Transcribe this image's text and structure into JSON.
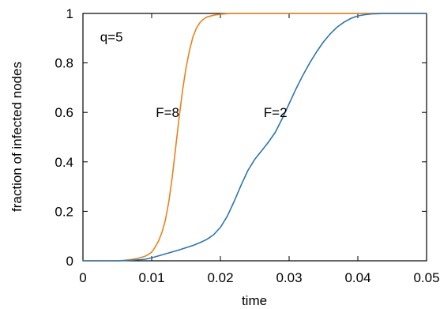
{
  "chart_data": {
    "type": "line",
    "xlabel": "time",
    "ylabel": "fraction of infected nodes",
    "xlim": [
      0,
      0.05
    ],
    "ylim": [
      0,
      1
    ],
    "grid": false,
    "legend": "none",
    "x_ticks": [
      "0",
      "0.01",
      "0.02",
      "0.03",
      "0.04",
      "0.05"
    ],
    "y_ticks": [
      "0",
      "0.2",
      "0.4",
      "0.6",
      "0.8",
      "1"
    ],
    "annotations": [
      {
        "text": "q=5",
        "x": 0.0025,
        "y": 0.905
      },
      {
        "text": "F=8",
        "x": 0.0106,
        "y": 0.6
      },
      {
        "text": "F=2",
        "x": 0.0263,
        "y": 0.6
      }
    ],
    "series": [
      {
        "color": "#e8831a",
        "x": [
          0,
          0.005,
          0.006,
          0.007,
          0.008,
          0.009,
          0.0095,
          0.01,
          0.0105,
          0.011,
          0.0115,
          0.012,
          0.0125,
          0.013,
          0.0135,
          0.014,
          0.0145,
          0.015,
          0.0155,
          0.016,
          0.0165,
          0.017,
          0.0175,
          0.018,
          0.019,
          0.02,
          0.021,
          0.022,
          0.023,
          0.025,
          0.05
        ],
        "y": [
          0,
          0,
          0.002,
          0.005,
          0.01,
          0.018,
          0.025,
          0.035,
          0.055,
          0.08,
          0.115,
          0.165,
          0.24,
          0.34,
          0.46,
          0.58,
          0.69,
          0.78,
          0.85,
          0.905,
          0.94,
          0.962,
          0.976,
          0.985,
          0.993,
          0.997,
          0.999,
          1.0,
          1.0,
          1.0,
          1.0
        ]
      },
      {
        "color": "#2a76b1",
        "x": [
          0,
          0.005,
          0.007,
          0.009,
          0.01,
          0.011,
          0.012,
          0.013,
          0.014,
          0.015,
          0.016,
          0.017,
          0.018,
          0.019,
          0.02,
          0.021,
          0.022,
          0.023,
          0.024,
          0.025,
          0.026,
          0.027,
          0.028,
          0.029,
          0.03,
          0.031,
          0.032,
          0.033,
          0.034,
          0.035,
          0.036,
          0.037,
          0.038,
          0.039,
          0.04,
          0.041,
          0.042,
          0.043,
          0.044,
          0.045,
          0.046,
          0.047,
          0.05
        ],
        "y": [
          0,
          0,
          0.002,
          0.006,
          0.012,
          0.02,
          0.028,
          0.036,
          0.044,
          0.053,
          0.062,
          0.073,
          0.086,
          0.105,
          0.135,
          0.18,
          0.24,
          0.305,
          0.365,
          0.41,
          0.445,
          0.48,
          0.52,
          0.575,
          0.635,
          0.695,
          0.75,
          0.8,
          0.845,
          0.885,
          0.918,
          0.945,
          0.965,
          0.98,
          0.99,
          0.995,
          0.998,
          0.999,
          1.0,
          1.0,
          1.0,
          1.0,
          1.0
        ]
      }
    ]
  }
}
